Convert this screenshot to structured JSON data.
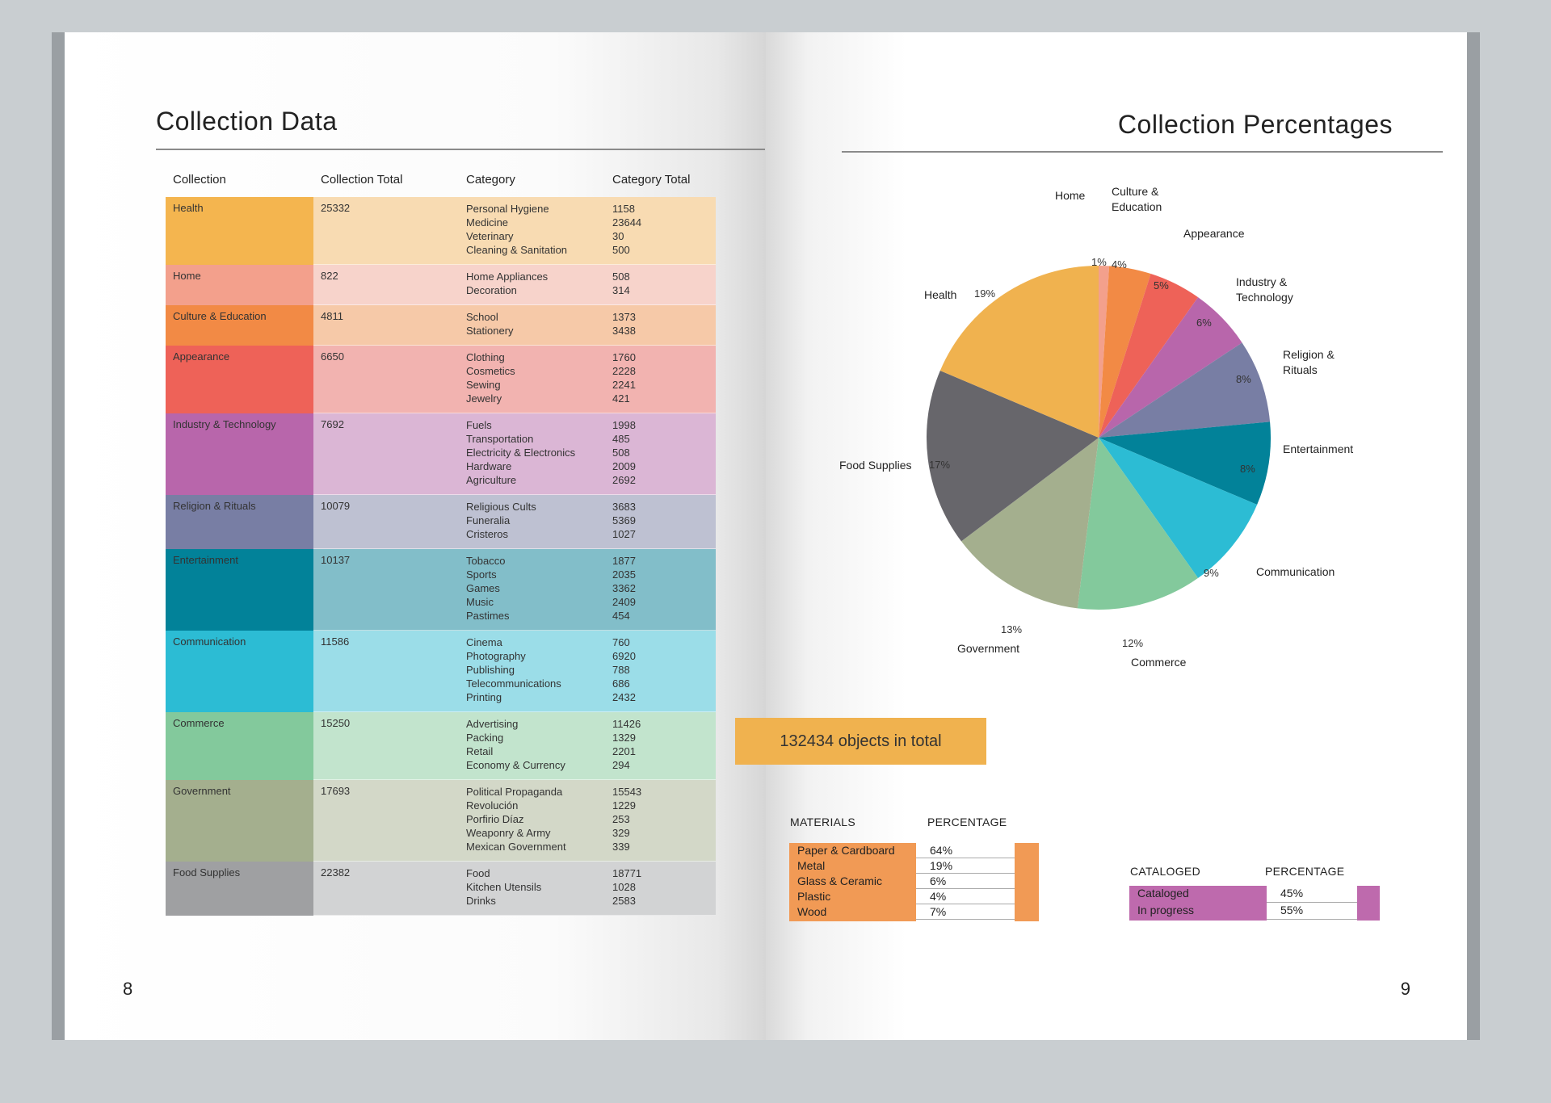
{
  "left_page": {
    "title": "Collection Data",
    "page_number": "8",
    "headers": [
      "Collection",
      "Collection Total",
      "Category",
      "Category Total"
    ],
    "rows": [
      {
        "collection": "Health",
        "total": "25332",
        "color": "#f4b54f",
        "tint": "#f8dbb2",
        "categories": [
          "Personal Hygiene",
          "Medicine",
          "Veterinary",
          "Cleaning & Sanitation"
        ],
        "values": [
          "1158",
          "23644",
          "30",
          "500"
        ]
      },
      {
        "collection": "Home",
        "total": "822",
        "color": "#f3a08c",
        "tint": "#f7d3cb",
        "categories": [
          "Home Appliances",
          "Decoration"
        ],
        "values": [
          "508",
          "314"
        ]
      },
      {
        "collection": "Culture & Education",
        "total": "4811",
        "color": "#f28a45",
        "tint": "#f6c9a8",
        "categories": [
          "School",
          "Stationery"
        ],
        "values": [
          "1373",
          "3438"
        ]
      },
      {
        "collection": "Appearance",
        "total": "6650",
        "color": "#ee6258",
        "tint": "#f2b3b0",
        "categories": [
          "Clothing",
          "Cosmetics",
          "Sewing",
          "Jewelry"
        ],
        "values": [
          "1760",
          "2228",
          "2241",
          "421"
        ]
      },
      {
        "collection": "Industry  & Technology",
        "total": "7692",
        "color": "#b866ab",
        "tint": "#dbb6d5",
        "categories": [
          "Fuels",
          "Transportation",
          "Electricity & Electronics",
          "Hardware",
          "Agriculture"
        ],
        "values": [
          "1998",
          "485",
          "508",
          "2009",
          "2692"
        ]
      },
      {
        "collection": "Religion & Rituals",
        "total": "10079",
        "color": "#787ea4",
        "tint": "#bec1d2",
        "categories": [
          "Religious Cults",
          "Funeralia",
          "Cristeros"
        ],
        "values": [
          "3683",
          "5369",
          "1027"
        ]
      },
      {
        "collection": "Entertainment",
        "total": "10137",
        "color": "#028299",
        "tint": "#82bec9",
        "categories": [
          "Tobacco",
          "Sports",
          "Games",
          "Music",
          "Pastimes"
        ],
        "values": [
          "1877",
          "2035",
          "3362",
          "2409",
          "454"
        ]
      },
      {
        "collection": "Communication",
        "total": "11586",
        "color": "#2cbcd4",
        "tint": "#9bdde8",
        "categories": [
          "Cinema",
          "Photography",
          "Publishing",
          "Telecommunications",
          "Printing"
        ],
        "values": [
          "760",
          "6920",
          "788",
          "686",
          "2432"
        ]
      },
      {
        "collection": "Commerce",
        "total": "15250",
        "color": "#83c99c",
        "tint": "#c2e4cd",
        "categories": [
          "Advertising",
          "Packing",
          "Retail",
          "Economy & Currency"
        ],
        "values": [
          "11426",
          "1329",
          "2201",
          "294"
        ]
      },
      {
        "collection": "Government",
        "total": "17693",
        "color": "#a4af8e",
        "tint": "#d3d8c8",
        "categories": [
          "Political Propaganda",
          "Revolución",
          "Porfirio Díaz",
          "Weaponry & Army",
          "Mexican Government"
        ],
        "values": [
          "15543",
          "1229",
          "253",
          "329",
          "339"
        ]
      },
      {
        "collection": "Food Supplies",
        "total": "22382",
        "color": "#9fa0a2",
        "tint": "#d2d3d4",
        "categories": [
          "Food",
          "Kitchen Utensils",
          "Drinks"
        ],
        "values": [
          "18771",
          "1028",
          "2583"
        ]
      }
    ]
  },
  "right_page": {
    "title": "Collection Percentages",
    "page_number": "9",
    "total_label": "132434 objects in total",
    "materials": {
      "header": "MATERIALS",
      "pct_header": "PERCENTAGE",
      "color": "#f19a55",
      "items": [
        {
          "name": "Paper & Cardboard",
          "pct": "64%"
        },
        {
          "name": "Metal",
          "pct": "19%"
        },
        {
          "name": "Glass & Ceramic",
          "pct": "6%"
        },
        {
          "name": "Plastic",
          "pct": "4%"
        },
        {
          "name": "Wood",
          "pct": "7%"
        }
      ]
    },
    "cataloged": {
      "header": "CATALOGED",
      "pct_header": "PERCENTAGE",
      "color": "#be6aad",
      "items": [
        {
          "name": "Cataloged",
          "pct": "45%"
        },
        {
          "name": "In progress",
          "pct": "55%"
        }
      ]
    }
  },
  "chart_data": {
    "type": "pie",
    "slices": [
      {
        "label": "Home",
        "pct_label": "1%",
        "value": 1,
        "color": "#f3a08c"
      },
      {
        "label": "Culture & Education",
        "pct_label": "4%",
        "value": 4,
        "color": "#f28a45"
      },
      {
        "label": "Appearance",
        "pct_label": "5%",
        "value": 5,
        "color": "#ee6258"
      },
      {
        "label": "Industry & Technology",
        "pct_label": "6%",
        "value": 6,
        "color": "#b866ab"
      },
      {
        "label": "Religion & Rituals",
        "pct_label": "8%",
        "value": 8,
        "color": "#787ea4"
      },
      {
        "label": "Entertainment",
        "pct_label": "8%",
        "value": 8,
        "color": "#028299"
      },
      {
        "label": "Communication",
        "pct_label": "9%",
        "value": 9,
        "color": "#2cbcd4"
      },
      {
        "label": "Commerce",
        "pct_label": "12%",
        "value": 12,
        "color": "#83c99c"
      },
      {
        "label": "Government",
        "pct_label": "13%",
        "value": 13,
        "color": "#a4af8e"
      },
      {
        "label": "Food Supplies",
        "pct_label": "17%",
        "value": 17,
        "color": "#67666b"
      },
      {
        "label": "Health",
        "pct_label": "19%",
        "value": 19,
        "color": "#f0b24f"
      }
    ]
  }
}
